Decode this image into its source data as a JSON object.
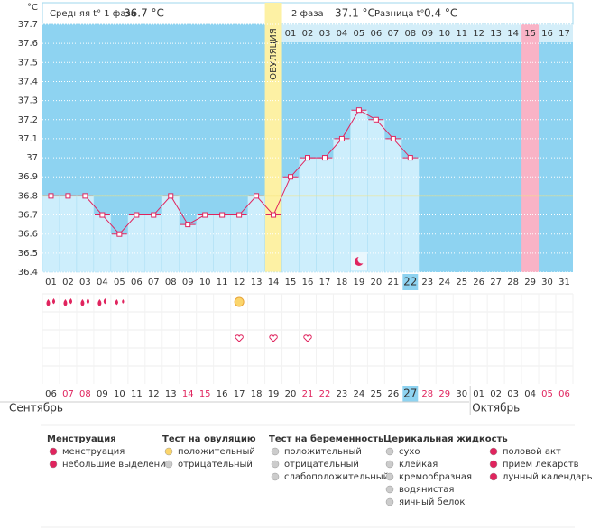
{
  "header": {
    "unit": "°C",
    "phase1_label": "Средняя t° 1 фаза",
    "phase1_value": "36.7 °C",
    "phase2_label": "2 фаза",
    "phase2_value": "37.1 °C",
    "diff_label": "Разница t°",
    "diff_value": "0.4 °C"
  },
  "chart_data": {
    "type": "line",
    "categories": [
      "01",
      "02",
      "03",
      "04",
      "05",
      "06",
      "07",
      "08",
      "09",
      "10",
      "11",
      "12",
      "13",
      "14",
      "15",
      "16",
      "17",
      "18",
      "19",
      "20",
      "21",
      "22",
      "23",
      "24",
      "25",
      "26",
      "27",
      "28",
      "29",
      "30",
      "31"
    ],
    "phase2_days": [
      "01",
      "02",
      "03",
      "04",
      "05",
      "06",
      "07",
      "08",
      "09",
      "10",
      "11",
      "12",
      "13",
      "14",
      "15",
      "16",
      "17"
    ],
    "ovulation_label": "ОВУЛЯЦИЯ",
    "values": [
      36.8,
      36.8,
      36.8,
      36.7,
      36.6,
      36.7,
      36.7,
      36.8,
      36.65,
      36.7,
      36.7,
      36.7,
      36.8,
      36.7,
      36.9,
      37.0,
      37.0,
      37.1,
      37.25,
      37.2,
      37.1,
      37.0,
      null,
      null,
      null,
      null,
      null,
      null,
      null,
      null,
      null
    ],
    "color": "#e0245e",
    "coverline": 36.8,
    "ylim": [
      36.4,
      37.7
    ],
    "yticks": [
      36.4,
      36.5,
      36.6,
      36.7,
      36.8,
      36.9,
      37,
      37.1,
      37.2,
      37.3,
      37.4,
      37.5,
      37.6,
      37.7
    ],
    "grid": true
  },
  "calendar": {
    "dates": [
      "06",
      "07",
      "08",
      "09",
      "10",
      "11",
      "12",
      "13",
      "14",
      "15",
      "16",
      "17",
      "18",
      "19",
      "20",
      "21",
      "22",
      "23",
      "24",
      "25",
      "26",
      "27",
      "28",
      "29",
      "30",
      "01",
      "02",
      "03",
      "04",
      "05",
      "06"
    ],
    "months": [
      "Сентябрь",
      "Октябрь"
    ]
  },
  "legend": {
    "menstruation": {
      "title": "Менструация",
      "items": [
        "менструация",
        "небольшие выделения"
      ]
    },
    "ovulation_test": {
      "title": "Тест на овуляцию",
      "items": [
        "положительный",
        "отрицательный"
      ]
    },
    "pregnancy_test": {
      "title": "Тест на беременность",
      "items": [
        "положительный",
        "отрицательный",
        "слабоположительный"
      ]
    },
    "cervical": {
      "title": "Церикальная жидкость",
      "items": [
        "сухо",
        "клейкая",
        "кремообразная",
        "водянистая",
        "яичный белок"
      ]
    },
    "other": {
      "items": [
        "половой акт",
        "прием лекарств",
        "лунный календарь"
      ]
    }
  }
}
